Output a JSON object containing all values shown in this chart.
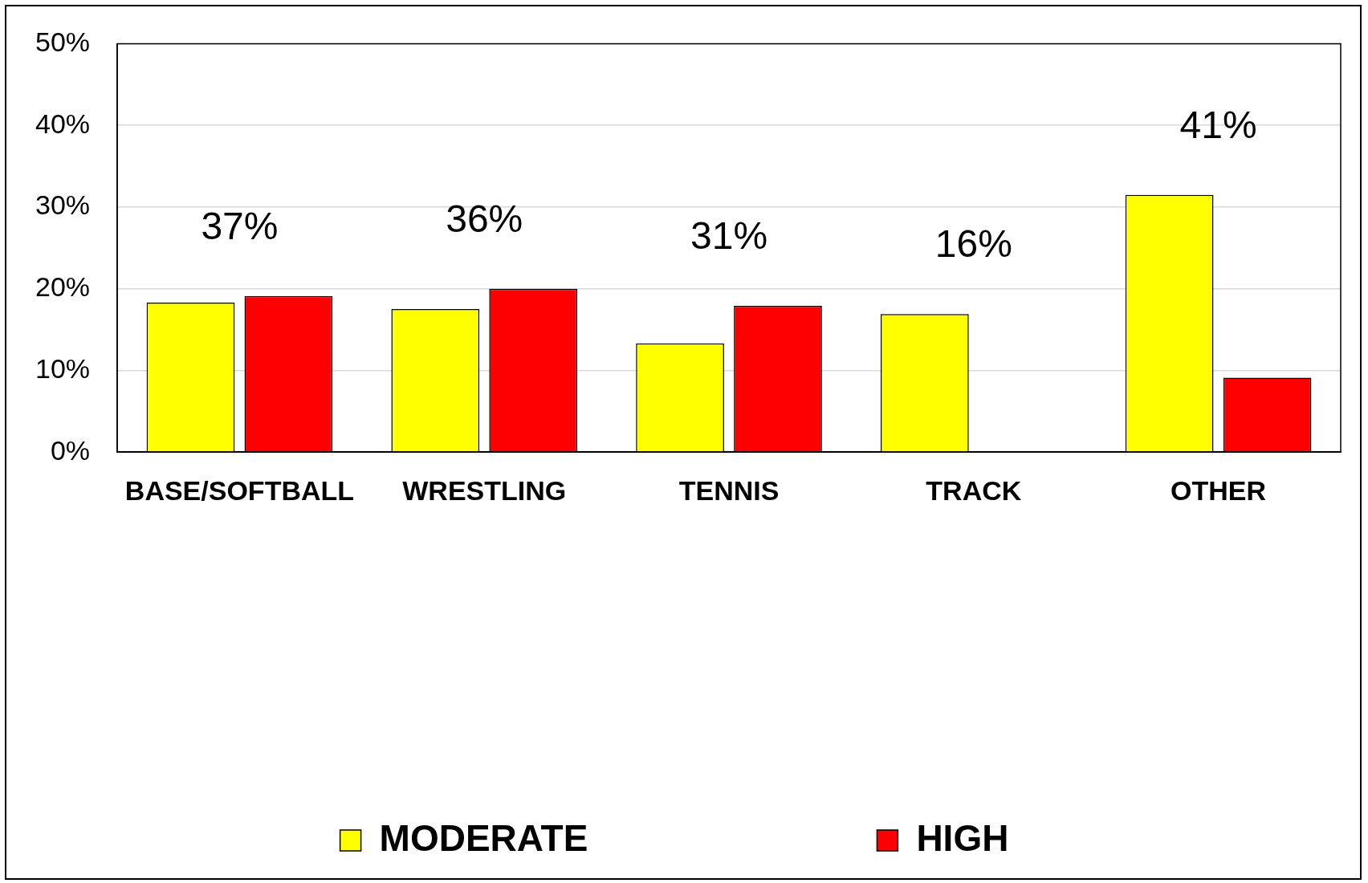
{
  "chart_data": {
    "type": "bar",
    "categories": [
      "BASE/SOFTBALL",
      "WRESTLING",
      "TENNIS",
      "TRACK",
      "OTHER"
    ],
    "series": [
      {
        "name": "MODERATE",
        "color": "#ffff00",
        "values": [
          18.3,
          17.5,
          13.3,
          16.9,
          31.5
        ]
      },
      {
        "name": "HIGH",
        "color": "#ff0000",
        "values": [
          19.1,
          20.0,
          17.9,
          0,
          9.1
        ]
      }
    ],
    "totals": [
      "37%",
      "36%",
      "31%",
      "16%",
      "41%"
    ],
    "ylim": [
      0,
      50
    ],
    "yticks": [
      {
        "value": 0,
        "label": "0%"
      },
      {
        "value": 10,
        "label": "10%"
      },
      {
        "value": 20,
        "label": "20%"
      },
      {
        "value": 30,
        "label": "30%"
      },
      {
        "value": 40,
        "label": "40%"
      },
      {
        "value": 50,
        "label": "50%"
      }
    ],
    "grid": "y",
    "legend": "bottom"
  }
}
